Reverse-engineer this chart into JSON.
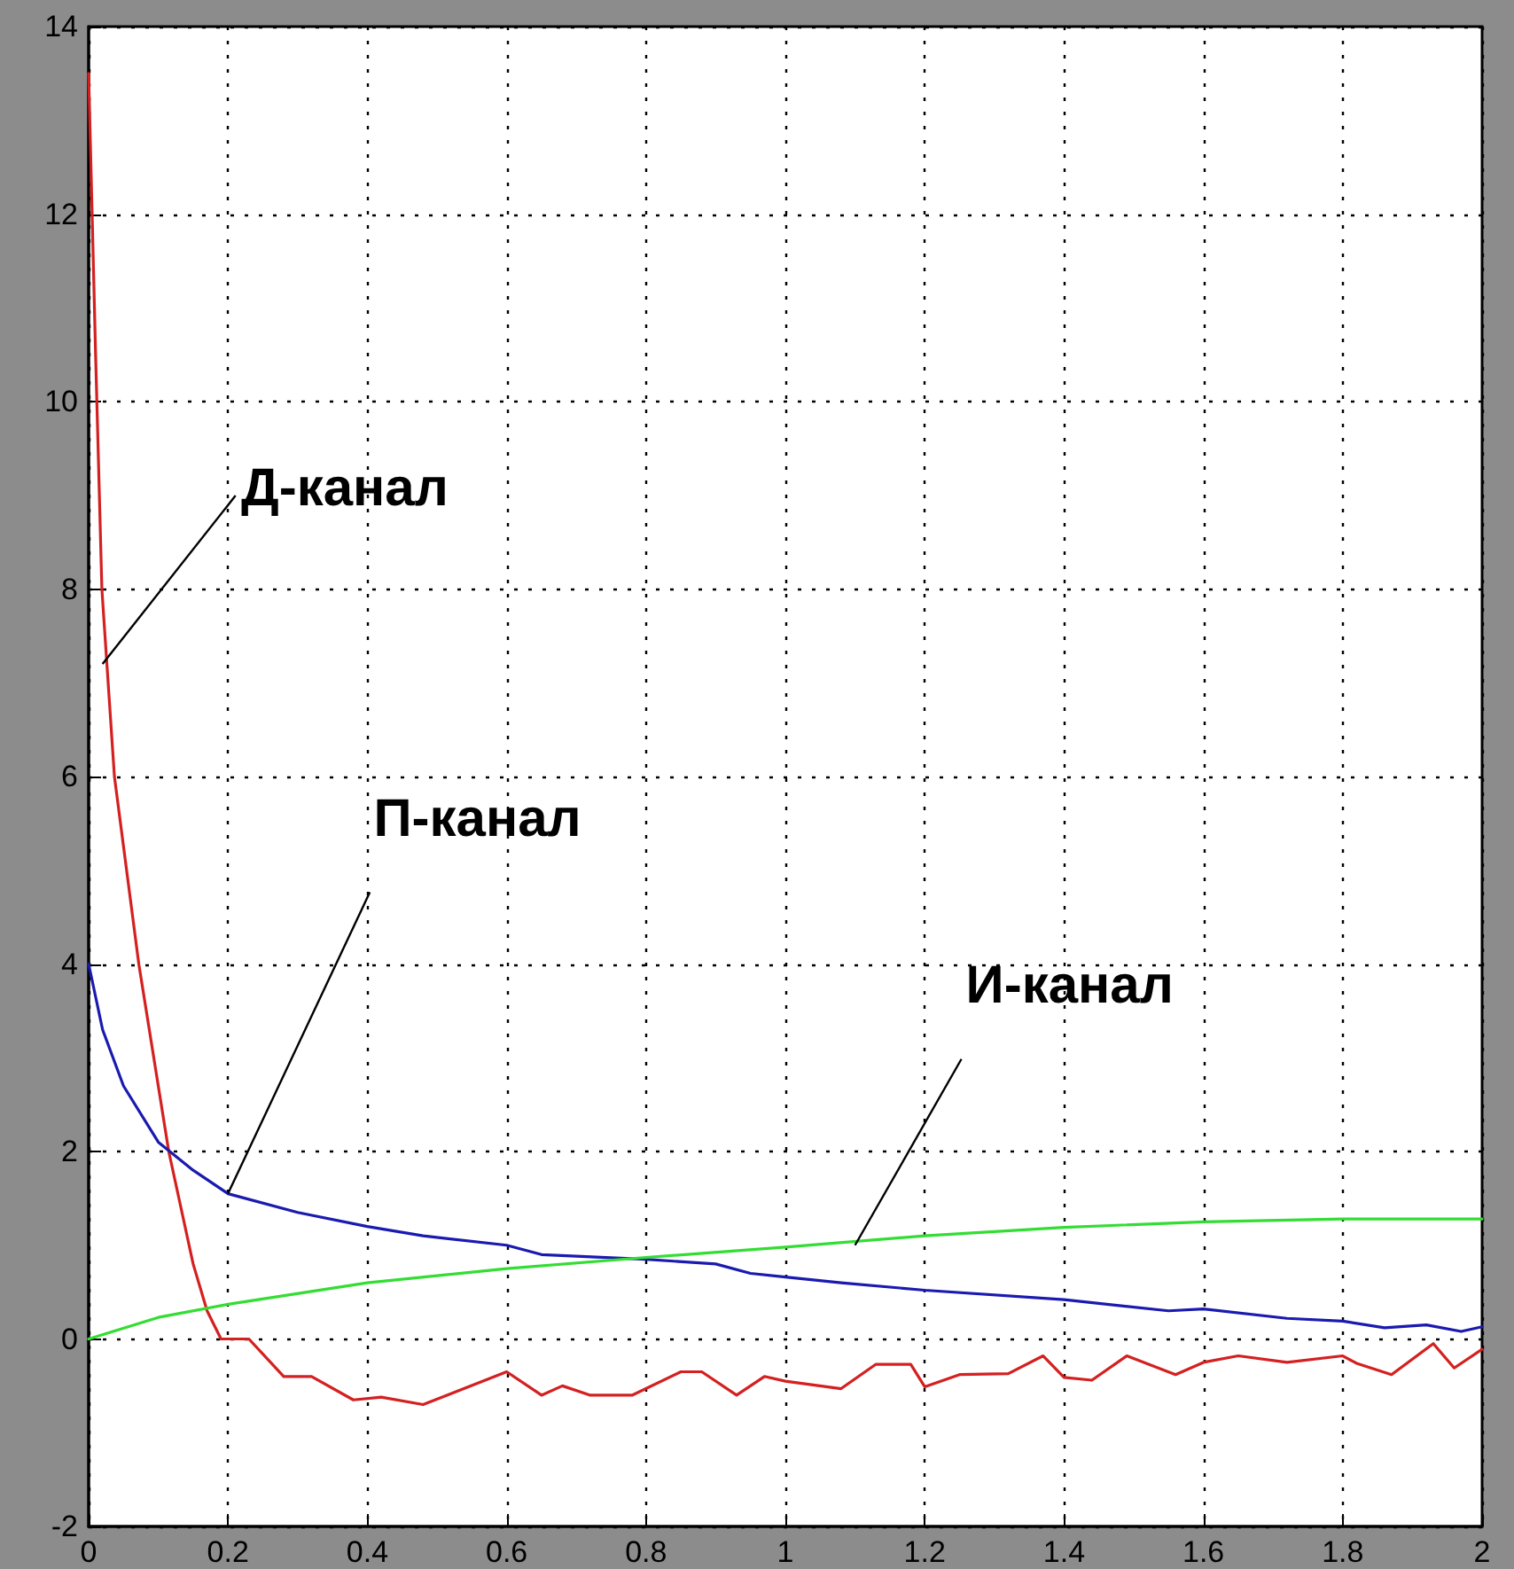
{
  "chart_data": {
    "type": "line",
    "xlim": [
      0,
      2
    ],
    "ylim": [
      -2,
      14
    ],
    "xticks": [
      0,
      0.2,
      0.4,
      0.6,
      0.8,
      1,
      1.2,
      1.4,
      1.6,
      1.8,
      2
    ],
    "yticks": [
      -2,
      0,
      2,
      4,
      6,
      8,
      10,
      12,
      14
    ],
    "grid": true,
    "marker": "none",
    "line_style": "solid",
    "series": [
      {
        "color": "#d42020",
        "x": [
          0,
          0.005,
          0.01,
          0.019,
          0.037,
          0.072,
          0.115,
          0.15,
          0.17,
          0.19,
          0.23,
          0.28,
          0.32,
          0.38,
          0.42,
          0.48,
          0.6,
          0.65,
          0.68,
          0.72,
          0.78,
          0.85,
          0.88,
          0.93,
          0.97,
          1.0,
          1.08,
          1.13,
          1.18,
          1.2,
          1.25,
          1.32,
          1.37,
          1.4,
          1.44,
          1.49,
          1.56,
          1.6,
          1.65,
          1.72,
          1.8,
          1.82,
          1.87,
          1.93,
          1.96,
          2.0
        ],
        "values": [
          13.5,
          12,
          10.5,
          8,
          6,
          4,
          2,
          0.8,
          0.3,
          0,
          0,
          -0.4,
          -0.4,
          -0.65,
          -0.62,
          -0.7,
          -0.35,
          -0.6,
          -0.5,
          -0.6,
          -0.6,
          -0.35,
          -0.35,
          -0.6,
          -0.4,
          -0.45,
          -0.53,
          -0.27,
          -0.27,
          -0.51,
          -0.38,
          -0.37,
          -0.18,
          -0.41,
          -0.44,
          -0.18,
          -0.38,
          -0.25,
          -0.18,
          -0.25,
          -0.18,
          -0.26,
          -0.38,
          -0.05,
          -0.31,
          -0.11
        ]
      },
      {
        "color": "#1a1ab0",
        "x": [
          0,
          0.02,
          0.05,
          0.1,
          0.15,
          0.2,
          0.3,
          0.4,
          0.48,
          0.6,
          0.65,
          0.8,
          0.9,
          0.95,
          1.0,
          1.08,
          1.2,
          1.4,
          1.55,
          1.6,
          1.72,
          1.8,
          1.86,
          1.92,
          1.97,
          2.0
        ],
        "values": [
          4.0,
          3.3,
          2.7,
          2.1,
          1.8,
          1.55,
          1.35,
          1.2,
          1.1,
          1.0,
          0.9,
          0.85,
          0.8,
          0.7,
          0.66,
          0.6,
          0.52,
          0.42,
          0.3,
          0.32,
          0.22,
          0.19,
          0.12,
          0.15,
          0.08,
          0.13
        ]
      },
      {
        "color": "#33dd33",
        "x": [
          0,
          0.1,
          0.2,
          0.4,
          0.6,
          0.8,
          1.0,
          1.2,
          1.4,
          1.6,
          1.8,
          2.0
        ],
        "values": [
          0,
          0.23,
          0.37,
          0.6,
          0.75,
          0.87,
          0.98,
          1.1,
          1.19,
          1.25,
          1.28,
          1.28
        ]
      }
    ],
    "annotations": [
      {
        "text": "Д-канал",
        "x": 0.02,
        "y": 7.2
      },
      {
        "text": "П-канал",
        "x": 0.2,
        "y": 1.55
      },
      {
        "text": "И-канал",
        "x": 1.1,
        "y": 1.0
      }
    ]
  }
}
